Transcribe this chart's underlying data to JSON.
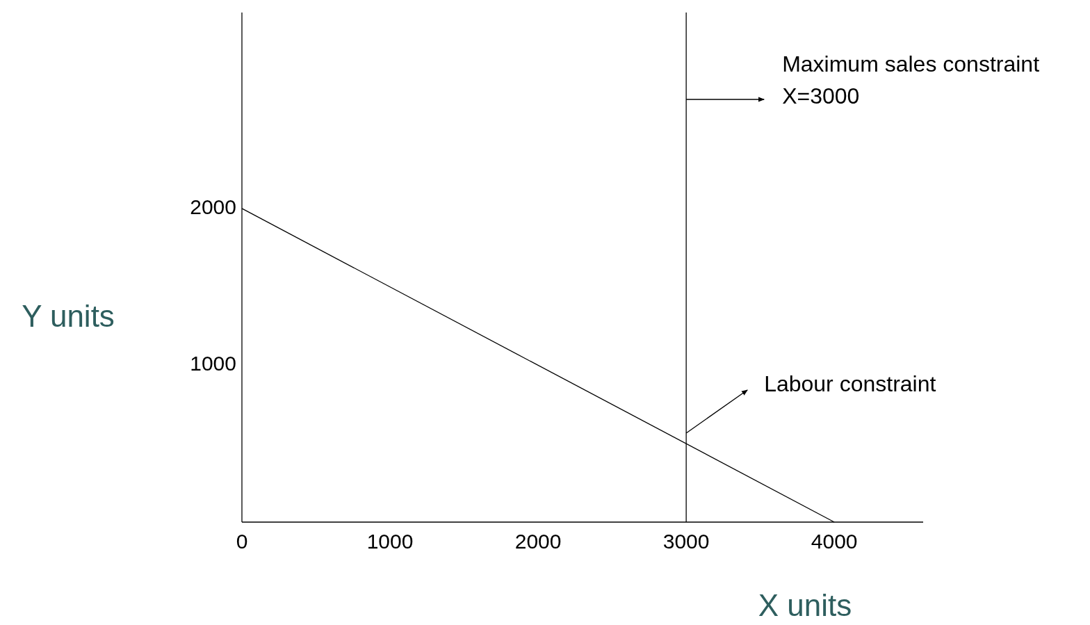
{
  "chart_data": {
    "type": "line",
    "xlabel": "X  units",
    "ylabel": "Y  units",
    "x": [
      0,
      4000
    ],
    "series": [
      {
        "color": "#000000",
        "values": [
          2000,
          0
        ]
      }
    ],
    "xlim": [
      0,
      4600
    ],
    "ylim": [
      0,
      3250
    ],
    "xticks": [
      0,
      1000,
      2000,
      3000,
      4000
    ],
    "yticks": [
      1000,
      2000
    ],
    "ref_lines": [
      {
        "axis": "x",
        "value": 3000,
        "label": "Maximum sales constraint\nX=3000",
        "color": "#000000"
      }
    ],
    "annotations": [
      "Labour constraint"
    ],
    "grid": false,
    "marker": "none",
    "line_style": "solid"
  }
}
